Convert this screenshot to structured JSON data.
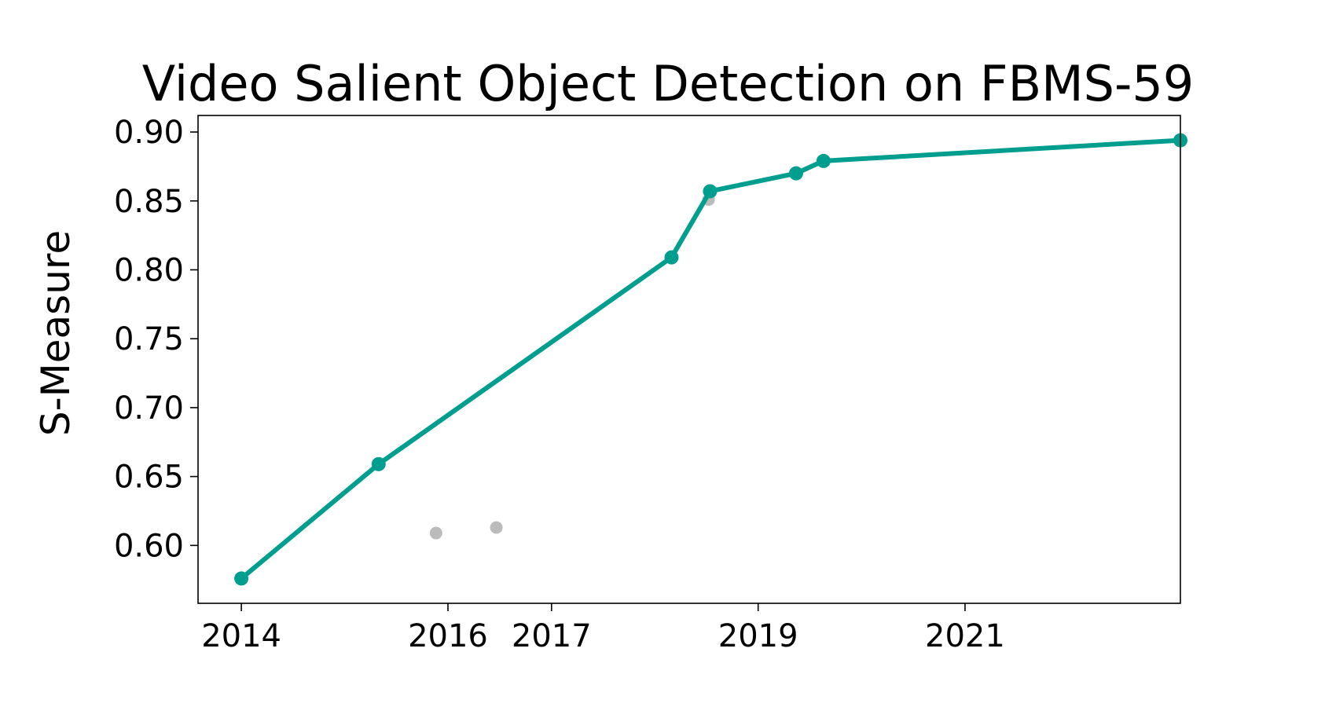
{
  "chart_data": {
    "type": "line",
    "title": "Video Salient Object Detection on FBMS-59",
    "xlabel": "",
    "ylabel": "S-Measure",
    "x_type": "date",
    "xlim": [
      "2013-08-01",
      "2023-02-01"
    ],
    "ylim": [
      0.558,
      0.912
    ],
    "x_ticks": [
      "2014",
      "2016",
      "2017",
      "2019",
      "2021"
    ],
    "y_ticks": [
      0.6,
      0.65,
      0.7,
      0.75,
      0.8,
      0.85,
      0.9
    ],
    "y_tick_labels": [
      "0.60",
      "0.65",
      "0.70",
      "0.75",
      "0.80",
      "0.85",
      "0.90"
    ],
    "grid": false,
    "legend": "none",
    "series": [
      {
        "color": "#009e8e",
        "style": "line-with-markers",
        "points": [
          {
            "x": "2014-01-01",
            "y": 0.576
          },
          {
            "x": "2015-05-01",
            "y": 0.659
          },
          {
            "x": "2018-03-01",
            "y": 0.809
          },
          {
            "x": "2018-07-15",
            "y": 0.857
          },
          {
            "x": "2019-05-15",
            "y": 0.87
          },
          {
            "x": "2019-08-20",
            "y": 0.879
          },
          {
            "x": "2023-02-01",
            "y": 0.894
          }
        ]
      },
      {
        "color": "#bbbbbb",
        "style": "markers-only",
        "points": [
          {
            "x": "2015-11-20",
            "y": 0.609
          },
          {
            "x": "2016-06-20",
            "y": 0.613
          },
          {
            "x": "2018-07-10",
            "y": 0.851
          }
        ]
      }
    ]
  }
}
